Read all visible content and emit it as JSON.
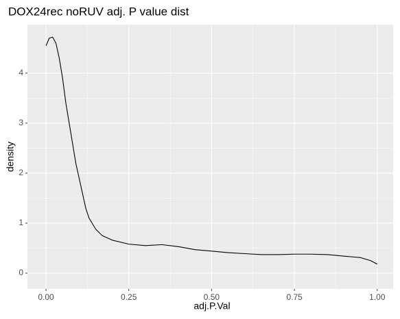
{
  "chart_data": {
    "type": "line",
    "title": "DOX24rec noRUV adj. P value dist",
    "x_label": "adj.P.Val",
    "y_label": "density",
    "x": [
      0.0,
      0.01,
      0.02,
      0.03,
      0.04,
      0.05,
      0.06,
      0.07,
      0.08,
      0.09,
      0.1,
      0.11,
      0.12,
      0.13,
      0.15,
      0.17,
      0.2,
      0.25,
      0.3,
      0.35,
      0.4,
      0.45,
      0.5,
      0.55,
      0.6,
      0.65,
      0.7,
      0.75,
      0.8,
      0.85,
      0.9,
      0.95,
      0.98,
      1.0
    ],
    "series": [
      {
        "name": "density",
        "color": "#000000",
        "values": [
          4.55,
          4.7,
          4.72,
          4.6,
          4.3,
          3.9,
          3.4,
          3.0,
          2.6,
          2.2,
          1.9,
          1.6,
          1.3,
          1.1,
          0.88,
          0.75,
          0.66,
          0.58,
          0.55,
          0.57,
          0.53,
          0.47,
          0.44,
          0.41,
          0.39,
          0.37,
          0.37,
          0.38,
          0.38,
          0.37,
          0.34,
          0.31,
          0.25,
          0.18
        ]
      }
    ],
    "xlim": [
      -0.056,
      1.048
    ],
    "xticks": [
      {
        "value": 0,
        "label": "0.00"
      },
      {
        "value": 0.25,
        "label": "0.25"
      },
      {
        "value": 0.5,
        "label": "0.50"
      },
      {
        "value": 0.75,
        "label": "0.75"
      },
      {
        "value": 1,
        "label": "1.00"
      }
    ],
    "ylim": [
      -0.315,
      4.97
    ],
    "yticks": [
      0,
      1,
      2,
      3,
      4
    ],
    "grid": true
  }
}
